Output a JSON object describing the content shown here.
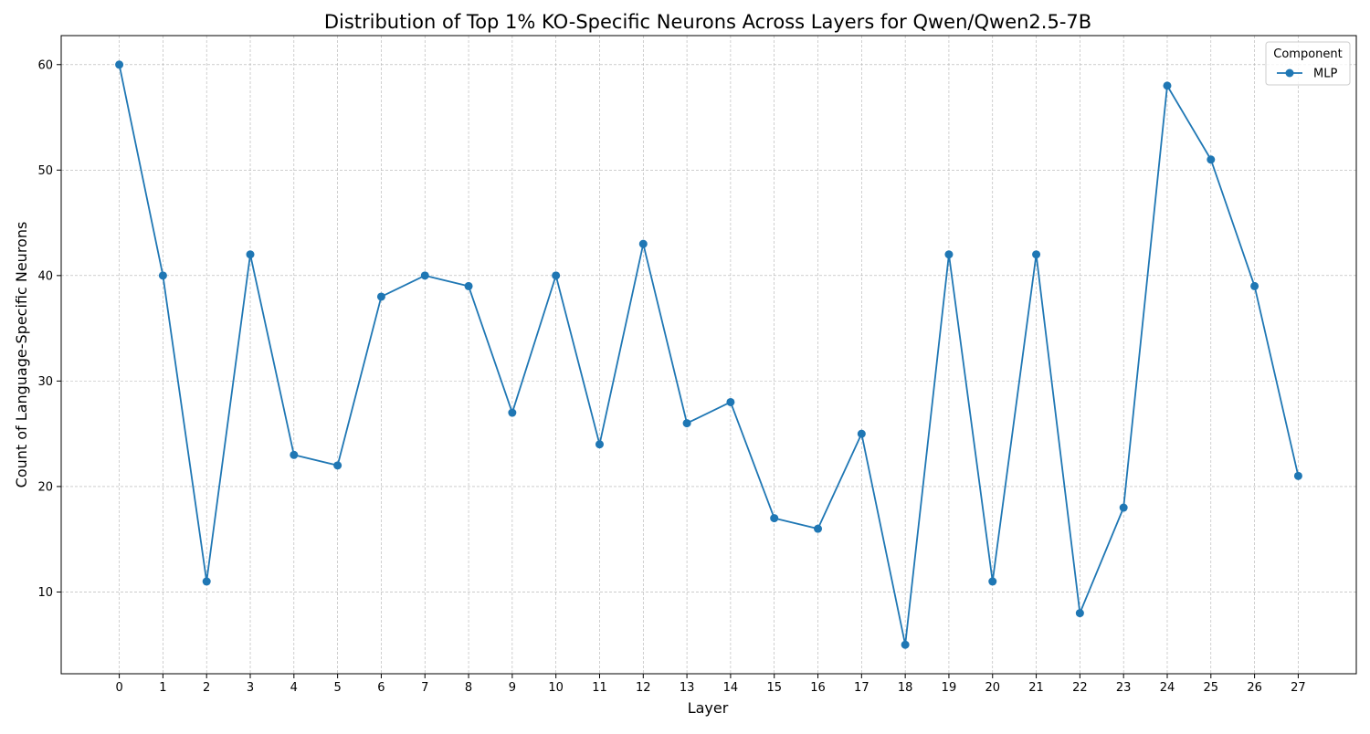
{
  "chart_data": {
    "type": "line",
    "title": "Distribution of Top 1% KO-Specific Neurons Across Layers for Qwen/Qwen2.5-7B",
    "xlabel": "Layer",
    "ylabel": "Count of Language-Specific Neurons",
    "x": [
      0,
      1,
      2,
      3,
      4,
      5,
      6,
      7,
      8,
      9,
      10,
      11,
      12,
      13,
      14,
      15,
      16,
      17,
      18,
      19,
      20,
      21,
      22,
      23,
      24,
      25,
      26,
      27
    ],
    "x_ticks": [
      "0",
      "1",
      "2",
      "3",
      "4",
      "5",
      "6",
      "7",
      "8",
      "9",
      "10",
      "11",
      "12",
      "13",
      "14",
      "15",
      "16",
      "17",
      "18",
      "19",
      "20",
      "21",
      "22",
      "23",
      "24",
      "25",
      "26",
      "27"
    ],
    "y_ticks": [
      "10",
      "20",
      "30",
      "40",
      "50",
      "60"
    ],
    "xlim": [
      -1.33,
      28.33
    ],
    "ylim": [
      2.25,
      62.75
    ],
    "grid": true,
    "legend": {
      "title": "Component",
      "placement": "top-right"
    },
    "series": [
      {
        "name": "MLP",
        "color": "#1f77b4",
        "values": [
          60,
          40,
          11,
          42,
          23,
          22,
          38,
          40,
          39,
          27,
          40,
          24,
          43,
          26,
          28,
          17,
          16,
          25,
          5,
          42,
          11,
          42,
          8,
          18,
          58,
          51,
          39,
          21
        ]
      }
    ]
  }
}
